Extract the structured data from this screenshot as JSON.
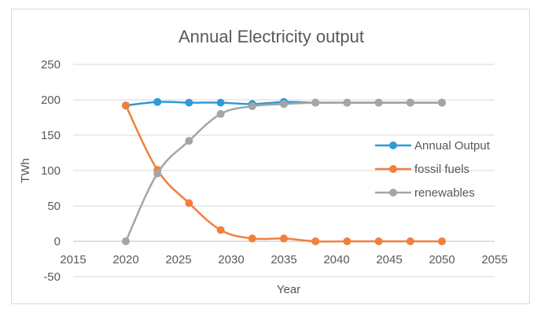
{
  "chart_data": {
    "type": "line",
    "title": "Annual Electricity output",
    "xlabel": "Year",
    "ylabel": "TWh",
    "xlim": [
      2015,
      2055
    ],
    "ylim": [
      -50,
      250
    ],
    "xticks": [
      2015,
      2020,
      2025,
      2030,
      2035,
      2040,
      2045,
      2050,
      2055
    ],
    "yticks": [
      -50,
      0,
      50,
      100,
      150,
      200,
      250
    ],
    "grid": "horizontal",
    "legend": "right",
    "series": [
      {
        "name": "Annual Output",
        "color": "#2e9bd6",
        "x": [
          2020,
          2023,
          2026,
          2029,
          2032,
          2035,
          2038,
          2041,
          2044,
          2047,
          2050
        ],
        "y": [
          192,
          197,
          196,
          196,
          194,
          197,
          196,
          196,
          196,
          196,
          196
        ]
      },
      {
        "name": "fossil fuels",
        "color": "#f0803c",
        "x": [
          2020,
          2023,
          2026,
          2029,
          2032,
          2035,
          2038,
          2041,
          2044,
          2047,
          2050
        ],
        "y": [
          192,
          101,
          54,
          16,
          4,
          4,
          0,
          0,
          0,
          0,
          0
        ]
      },
      {
        "name": "renewables",
        "color": "#a5a5a5",
        "x": [
          2020,
          2023,
          2026,
          2029,
          2032,
          2035,
          2038,
          2041,
          2044,
          2047,
          2050
        ],
        "y": [
          0,
          96,
          142,
          180,
          191,
          194,
          196,
          196,
          196,
          196,
          196
        ]
      }
    ]
  }
}
